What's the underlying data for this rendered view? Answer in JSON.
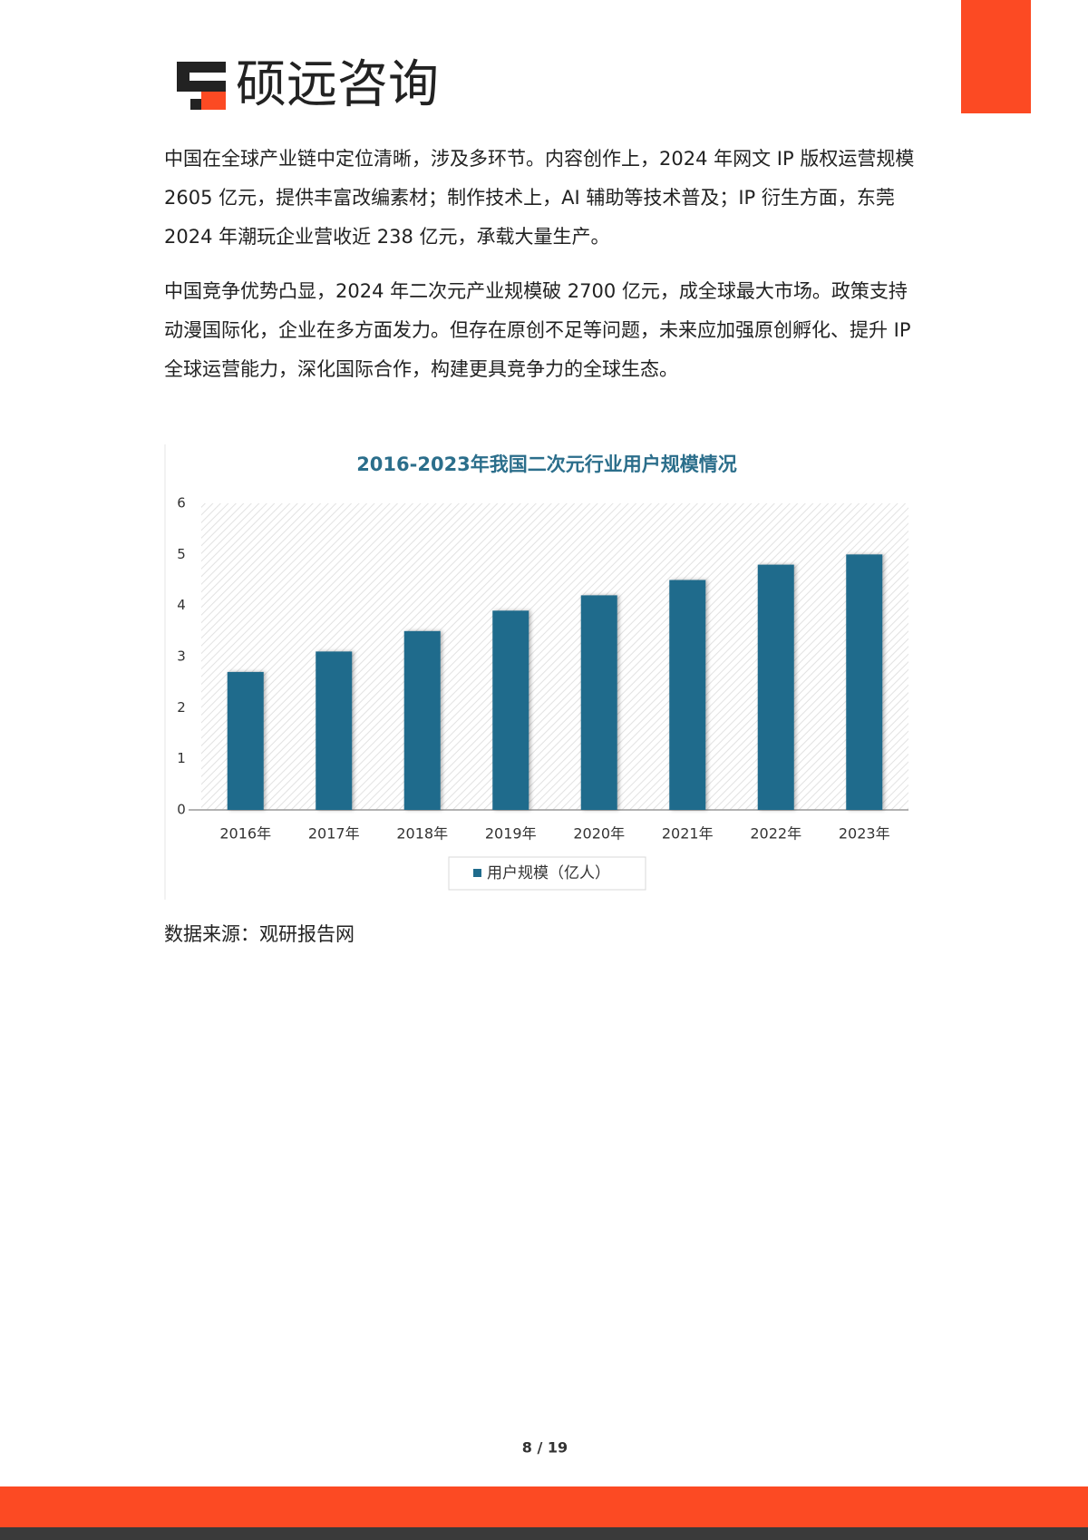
{
  "header": {
    "logo_text": "硕远咨询"
  },
  "paragraphs": [
    "中国在全球产业链中定位清晰，涉及多环节。内容创作上，2024 年网文 IP 版权运营规模 2605 亿元，提供丰富改编素材；制作技术上，AI 辅助等技术普及；IP 衍生方面，东莞 2024 年潮玩企业营收近 238 亿元，承载大量生产。",
    "中国竞争优势凸显，2024 年二次元产业规模破 2700 亿元，成全球最大市场。政策支持动漫国际化，企业在多方面发力。但存在原创不足等问题，未来应加强原创孵化、提升 IP 全球运营能力，深化国际合作，构建更具竞争力的全球生态。"
  ],
  "chart_data": {
    "type": "bar",
    "title": "2016-2023年我国二次元行业用户规模情况",
    "categories": [
      "2016年",
      "2017年",
      "2018年",
      "2019年",
      "2020年",
      "2021年",
      "2022年",
      "2023年"
    ],
    "series": [
      {
        "name": "用户规模（亿人）",
        "color": "#1f6b8c",
        "values": [
          2.7,
          3.1,
          3.5,
          3.9,
          4.2,
          4.5,
          4.8,
          5.0
        ]
      }
    ],
    "ylim": [
      0,
      6
    ],
    "yticks": [
      0,
      1,
      2,
      3,
      4,
      5,
      6
    ],
    "legend": "bottom"
  },
  "source": "数据来源：观研报告网",
  "page_number": "8 / 19"
}
